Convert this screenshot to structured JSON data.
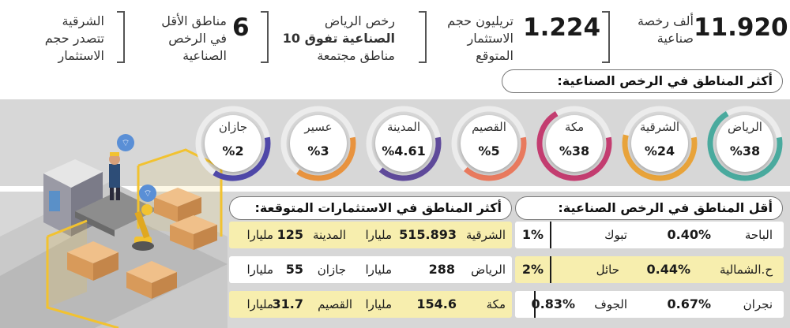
{
  "stats": [
    {
      "num": "11.920",
      "desc": [
        "ألف رخصة",
        "صناعية"
      ]
    },
    {
      "num": "1.224",
      "desc": [
        "تريليون حجم",
        "الاستثمار",
        "المتوقع"
      ]
    },
    {
      "desc_html": true,
      "desc": [
        "رخص الرياض",
        "الصناعية تفوق 10",
        "مناطق مجتمعة"
      ]
    },
    {
      "num": "6",
      "desc": [
        "مناطق الأقل",
        "في الرخص",
        "الصناعية"
      ]
    },
    {
      "desc": [
        "الشرقية",
        "تتصدر حجم",
        "الاستثمار"
      ]
    }
  ],
  "headings": {
    "most_licenses": "أكثر المناطق في الرخص الصناعية:",
    "most_investment": "أكثر المناطق في الاستثمارات المتوقعة:",
    "least_licenses": "أقل المناطق في الرخص الصناعية:"
  },
  "gauges": [
    {
      "name": "الرياض",
      "label": "%38",
      "value": 38,
      "color": "#4aaa9e"
    },
    {
      "name": "الشرقية",
      "label": "%24",
      "value": 24,
      "color": "#e8a33a"
    },
    {
      "name": "مكة",
      "label": "%38",
      "value": 38,
      "color": "#c33d70"
    },
    {
      "name": "القصيم",
      "label": "%5",
      "value": 5,
      "color": "#e87a5e"
    },
    {
      "name": "المدينة",
      "label": "%4.61",
      "value": 4.61,
      "color": "#5f4a9a"
    },
    {
      "name": "عسير",
      "label": "%3",
      "value": 3,
      "color": "#e8933f"
    },
    {
      "name": "جازان",
      "label": "%2",
      "value": 2,
      "color": "#4f48a8"
    }
  ],
  "least": {
    "rows": [
      {
        "r1": "الباحة",
        "v1": "0.40%",
        "r2": "تبوك",
        "v2": "1%"
      },
      {
        "r1": "ح.الشمالية",
        "v1": "0.44%",
        "r2": "حائل",
        "v2": "2%"
      },
      {
        "r1": "نجران",
        "v1": "0.67%",
        "r2": "الجوف",
        "v2": "0.83%"
      }
    ]
  },
  "investment": {
    "unit": "مليارا",
    "rows": [
      {
        "r1": "الشرقية",
        "v1": "515.893",
        "r2": "المدينة",
        "v2": "125"
      },
      {
        "r1": "الرياض",
        "v1": "288",
        "r2": "جازان",
        "v2": "55"
      },
      {
        "r1": "مكة",
        "v1": "154.6",
        "r2": "القصيم",
        "v2": "31.7"
      }
    ]
  },
  "colors": {
    "band": "#d7d7d7",
    "highlight": "#f7eeae",
    "accent": "#f2c230"
  },
  "icons": [
    "wifi-icon",
    "wifi-icon"
  ]
}
